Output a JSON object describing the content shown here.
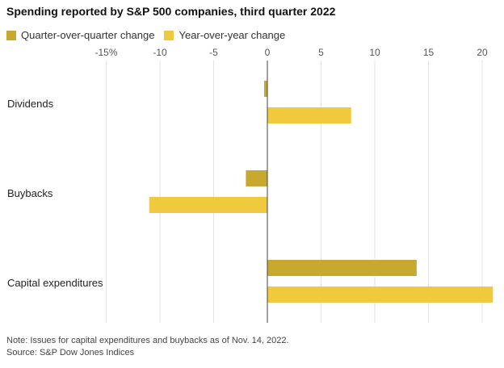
{
  "chart_data": {
    "type": "bar",
    "orientation": "horizontal",
    "title": "Spending reported by S&P 500 companies, third quarter 2022",
    "categories": [
      "Dividends",
      "Buybacks",
      "Capital expenditures"
    ],
    "series": [
      {
        "name": "Quarter-over-quarter change",
        "color": "#c8a92f",
        "values": [
          -0.3,
          -2.0,
          13.9
        ]
      },
      {
        "name": "Year-over-year change",
        "color": "#f0c93c",
        "values": [
          7.8,
          -11.0,
          21.0
        ]
      }
    ],
    "xlim": [
      -15,
      21
    ],
    "ticks": [
      {
        "value": -15,
        "label": "-15%"
      },
      {
        "value": -10,
        "label": "-10"
      },
      {
        "value": -5,
        "label": "-5"
      },
      {
        "value": 0,
        "label": "0"
      },
      {
        "value": 5,
        "label": "5"
      },
      {
        "value": 10,
        "label": "10"
      },
      {
        "value": 15,
        "label": "15"
      },
      {
        "value": 20,
        "label": "20"
      }
    ],
    "grid": true,
    "legend_position": "top-left"
  },
  "notes": {
    "note": "Note: Issues for capital expenditures and buybacks as of Nov. 14, 2022.",
    "source": "Source: S&P Dow Jones Indices"
  }
}
